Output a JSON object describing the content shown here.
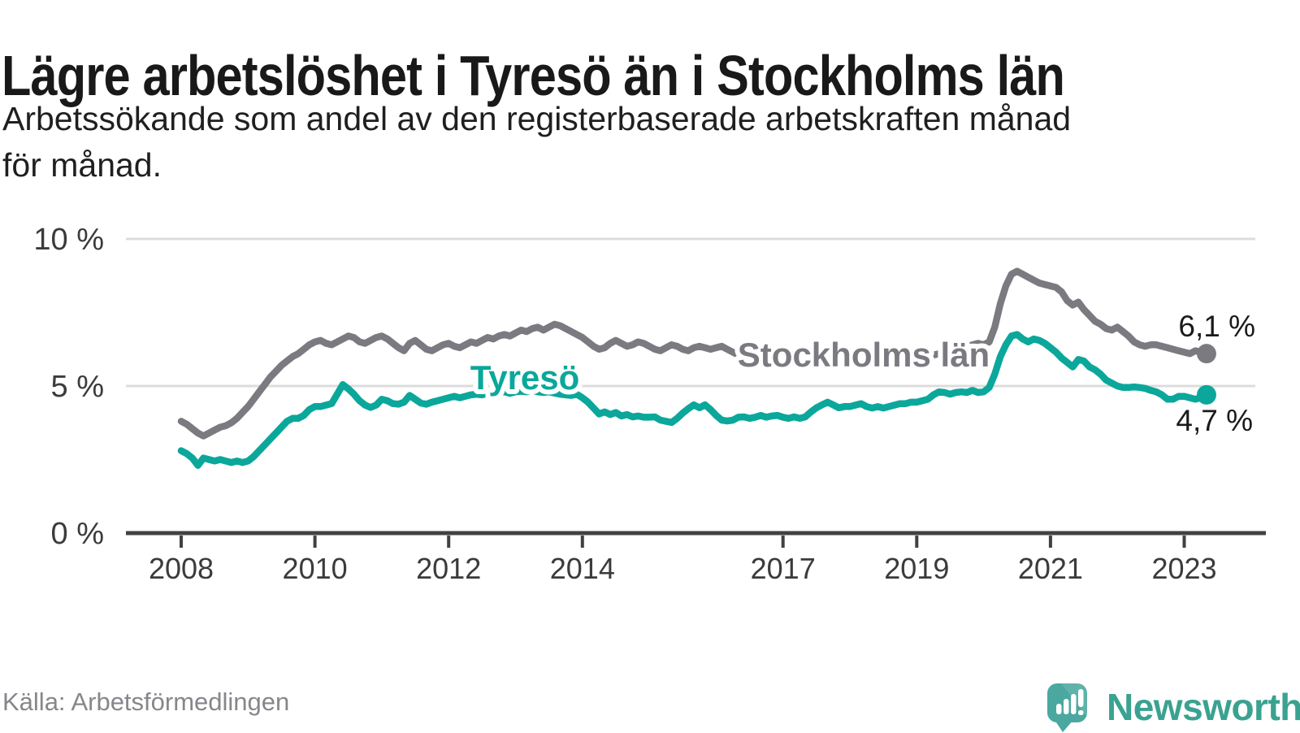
{
  "title": "Lägre arbetslöshet i Tyresö än i Stockholms län",
  "subtitle_lines": [
    "Arbetssökande som andel av den registerbaserade arbetskraften månad",
    "för månad."
  ],
  "source": "Källa: Arbetsförmedlingen",
  "logo": {
    "brand": "Newsworthy"
  },
  "colors": {
    "tyreso": "#0ba79b",
    "stockholm": "#7b7a80",
    "grid": "#dcdcdc",
    "axis": "#414141",
    "tick_text": "#3b3b3b",
    "value_label": "#1a1a1a",
    "logo_icon": "#4aa8a0",
    "logo_text": "#3aa290"
  },
  "chart_data": {
    "type": "line",
    "title": "Lägre arbetslöshet i Tyresö än i Stockholms län",
    "xlabel": "",
    "ylabel": "Arbetssökande som andel av den registerbaserade arbetskraften",
    "x_start_year": 2008,
    "x_step_months": 1,
    "xticks": [
      "2008",
      "2010",
      "2012",
      "2014",
      "2017",
      "2019",
      "2021",
      "2023"
    ],
    "xtick_years": [
      2008,
      2010,
      2012,
      2014,
      2017,
      2019,
      2021,
      2023
    ],
    "yticks": [
      {
        "value": 0,
        "label": "0 %"
      },
      {
        "value": 5,
        "label": "5 %"
      },
      {
        "value": 10,
        "label": "10 %"
      }
    ],
    "ylim": [
      0,
      10.5
    ],
    "grid": true,
    "series": [
      {
        "name": "Stockholms län",
        "end_label": "6,1 %",
        "end_value": 6.1,
        "color_key": "stockholm",
        "values": [
          3.8,
          3.7,
          3.55,
          3.4,
          3.3,
          3.4,
          3.5,
          3.6,
          3.65,
          3.75,
          3.9,
          4.1,
          4.3,
          4.55,
          4.8,
          5.05,
          5.3,
          5.5,
          5.7,
          5.85,
          6.0,
          6.1,
          6.25,
          6.4,
          6.5,
          6.55,
          6.45,
          6.4,
          6.5,
          6.6,
          6.7,
          6.65,
          6.5,
          6.45,
          6.55,
          6.65,
          6.7,
          6.6,
          6.45,
          6.3,
          6.2,
          6.45,
          6.55,
          6.4,
          6.25,
          6.2,
          6.3,
          6.4,
          6.45,
          6.35,
          6.3,
          6.4,
          6.5,
          6.45,
          6.55,
          6.65,
          6.6,
          6.7,
          6.75,
          6.7,
          6.8,
          6.9,
          6.85,
          6.95,
          7.0,
          6.9,
          7.0,
          7.1,
          7.05,
          6.95,
          6.85,
          6.75,
          6.65,
          6.5,
          6.35,
          6.25,
          6.3,
          6.45,
          6.55,
          6.45,
          6.35,
          6.4,
          6.5,
          6.45,
          6.35,
          6.25,
          6.2,
          6.3,
          6.4,
          6.35,
          6.25,
          6.2,
          6.3,
          6.35,
          6.3,
          6.25,
          6.3,
          6.35,
          6.25,
          6.15,
          6.05,
          5.95,
          6.0,
          6.05,
          6.0,
          5.95,
          5.9,
          5.95,
          6.0,
          5.95,
          5.9,
          5.85,
          5.9,
          5.95,
          6.0,
          5.95,
          5.9,
          5.85,
          5.9,
          5.95,
          5.9,
          5.85,
          5.8,
          5.75,
          5.8,
          5.85,
          5.8,
          5.75,
          5.7,
          5.75,
          5.8,
          5.85,
          5.9,
          5.95,
          6.0,
          6.05,
          6.1,
          6.15,
          6.2,
          6.25,
          6.3,
          6.35,
          6.4,
          6.45,
          6.4,
          6.5,
          7.0,
          7.8,
          8.4,
          8.8,
          8.9,
          8.8,
          8.7,
          8.6,
          8.5,
          8.45,
          8.4,
          8.35,
          8.2,
          7.9,
          7.75,
          7.85,
          7.6,
          7.4,
          7.2,
          7.1,
          6.95,
          6.9,
          7.0,
          6.85,
          6.7,
          6.5,
          6.4,
          6.35,
          6.4,
          6.4,
          6.35,
          6.3,
          6.25,
          6.2,
          6.15,
          6.1,
          6.2,
          6.15,
          6.1
        ]
      },
      {
        "name": "Tyresö",
        "end_label": "4,7 %",
        "end_value": 4.7,
        "color_key": "tyreso",
        "values": [
          2.8,
          2.7,
          2.55,
          2.3,
          2.55,
          2.5,
          2.45,
          2.5,
          2.45,
          2.4,
          2.45,
          2.4,
          2.45,
          2.6,
          2.8,
          3.0,
          3.2,
          3.4,
          3.6,
          3.8,
          3.9,
          3.9,
          4.0,
          4.2,
          4.3,
          4.3,
          4.35,
          4.4,
          4.72,
          5.05,
          4.9,
          4.72,
          4.5,
          4.35,
          4.27,
          4.35,
          4.55,
          4.5,
          4.4,
          4.38,
          4.45,
          4.68,
          4.55,
          4.42,
          4.38,
          4.45,
          4.5,
          4.55,
          4.6,
          4.65,
          4.6,
          4.65,
          4.7,
          4.72,
          4.7,
          4.75,
          4.72,
          4.78,
          4.8,
          4.75,
          4.8,
          4.82,
          4.8,
          4.85,
          4.8,
          4.78,
          4.8,
          4.76,
          4.72,
          4.7,
          4.68,
          4.72,
          4.6,
          4.45,
          4.25,
          4.05,
          4.12,
          4.03,
          4.1,
          3.98,
          4.03,
          3.95,
          3.98,
          3.94,
          3.94,
          3.95,
          3.84,
          3.8,
          3.76,
          3.9,
          4.08,
          4.23,
          4.36,
          4.26,
          4.36,
          4.2,
          4.0,
          3.84,
          3.81,
          3.84,
          3.94,
          3.95,
          3.9,
          3.94,
          4.0,
          3.94,
          3.98,
          4.0,
          3.94,
          3.9,
          3.95,
          3.9,
          3.95,
          4.12,
          4.26,
          4.36,
          4.45,
          4.36,
          4.26,
          4.3,
          4.3,
          4.35,
          4.4,
          4.3,
          4.25,
          4.3,
          4.25,
          4.3,
          4.35,
          4.4,
          4.4,
          4.45,
          4.45,
          4.5,
          4.55,
          4.7,
          4.8,
          4.78,
          4.72,
          4.78,
          4.8,
          4.78,
          4.85,
          4.78,
          4.8,
          4.95,
          5.4,
          6.0,
          6.4,
          6.7,
          6.75,
          6.6,
          6.5,
          6.6,
          6.55,
          6.45,
          6.3,
          6.15,
          5.95,
          5.8,
          5.65,
          5.9,
          5.85,
          5.65,
          5.55,
          5.4,
          5.2,
          5.1,
          5.0,
          4.95,
          4.95,
          4.97,
          4.95,
          4.92,
          4.85,
          4.8,
          4.7,
          4.55,
          4.55,
          4.65,
          4.65,
          4.6,
          4.55,
          4.6,
          4.7
        ]
      }
    ]
  }
}
